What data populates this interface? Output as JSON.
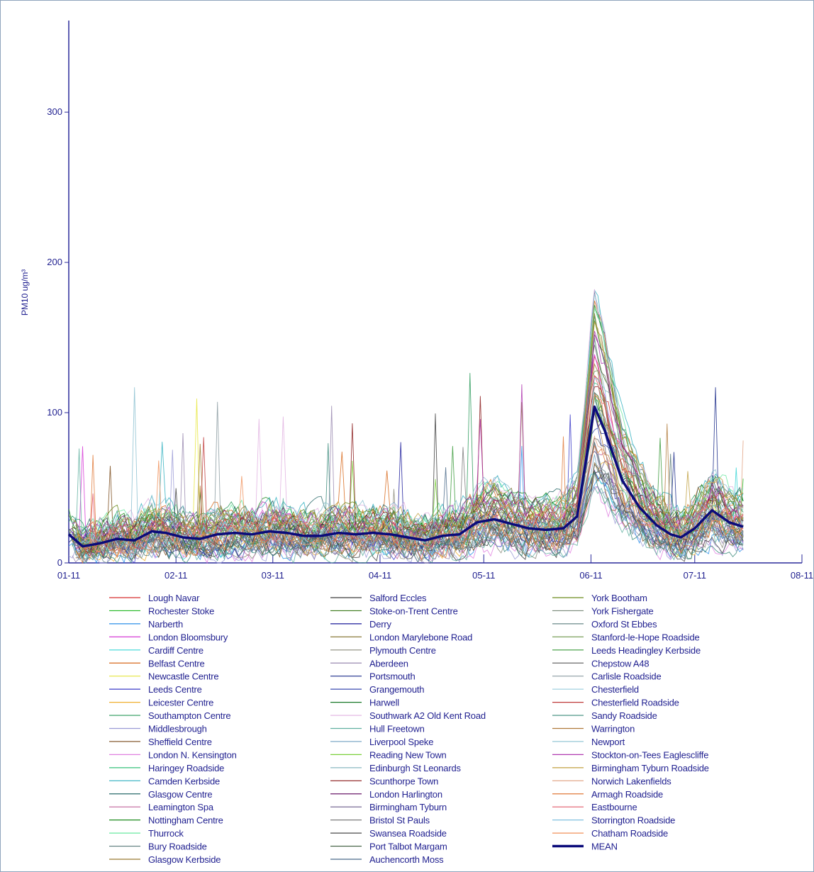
{
  "chart_data": {
    "type": "line",
    "title": "",
    "ylabel": "PM10 ug/m³",
    "xlabel": "",
    "x_ticks": [
      "01-11",
      "02-11",
      "03-11",
      "04-11",
      "05-11",
      "06-11",
      "07-11",
      "08-11"
    ],
    "x_range": [
      "2011-01-01",
      "2011-08-01"
    ],
    "ylim": [
      0,
      360
    ],
    "y_ticks": [
      0,
      100,
      200,
      300
    ],
    "grid": false,
    "legend_placement": "bottom",
    "mean_series": {
      "name": "MEAN",
      "color": "#0b0b7a",
      "x": [
        "2011-01-01",
        "2011-01-05",
        "2011-01-10",
        "2011-01-15",
        "2011-01-20",
        "2011-01-25",
        "2011-01-29",
        "2011-02-03",
        "2011-02-08",
        "2011-02-13",
        "2011-02-18",
        "2011-02-23",
        "2011-02-28",
        "2011-03-05",
        "2011-03-10",
        "2011-03-15",
        "2011-03-20",
        "2011-03-25",
        "2011-03-30",
        "2011-04-04",
        "2011-04-09",
        "2011-04-14",
        "2011-04-19",
        "2011-04-24",
        "2011-04-29",
        "2011-05-04",
        "2011-05-09",
        "2011-05-14",
        "2011-05-19",
        "2011-05-24",
        "2011-05-28",
        "2011-05-31",
        "2011-06-02",
        "2011-06-05",
        "2011-06-10",
        "2011-06-15",
        "2011-06-20",
        "2011-06-24",
        "2011-06-27",
        "2011-07-01",
        "2011-07-06",
        "2011-07-11",
        "2011-07-15"
      ],
      "values": [
        19,
        11,
        13,
        16,
        15,
        21,
        20,
        17,
        16,
        19,
        20,
        19,
        21,
        20,
        18,
        18,
        20,
        19,
        20,
        19,
        17,
        15,
        18,
        19,
        27,
        29,
        26,
        23,
        22,
        23,
        31,
        75,
        104,
        88,
        55,
        37,
        25,
        19,
        17,
        23,
        35,
        27,
        24
      ]
    },
    "station_series": [
      {
        "name": "Lough Navar",
        "color": "#d62c2c"
      },
      {
        "name": "Rochester Stoke",
        "color": "#22b822"
      },
      {
        "name": "Narberth",
        "color": "#2a8fe8"
      },
      {
        "name": "London Bloomsbury",
        "color": "#d63ad6"
      },
      {
        "name": "Cardiff Centre",
        "color": "#39d6d6"
      },
      {
        "name": "Belfast Centre",
        "color": "#d86a1c"
      },
      {
        "name": "Newcastle Centre",
        "color": "#e6e639"
      },
      {
        "name": "Leeds Centre",
        "color": "#3a3ac8"
      },
      {
        "name": "Leicester Centre",
        "color": "#f0b030"
      },
      {
        "name": "Southampton Centre",
        "color": "#2a9a5a"
      },
      {
        "name": "Middlesbrough",
        "color": "#9a9ad6"
      },
      {
        "name": "Sheffield Centre",
        "color": "#7a4a1a"
      },
      {
        "name": "London N. Kensington",
        "color": "#e080e0"
      },
      {
        "name": "Haringey Roadside",
        "color": "#36c27a"
      },
      {
        "name": "Camden Kerbside",
        "color": "#30b0c0"
      },
      {
        "name": "Glasgow Centre",
        "color": "#2a6a6a"
      },
      {
        "name": "Leamington Spa",
        "color": "#c0609a"
      },
      {
        "name": "Nottingham Centre",
        "color": "#1a8a1a"
      },
      {
        "name": "Thurrock",
        "color": "#6ae8a0"
      },
      {
        "name": "Bury Roadside",
        "color": "#5a7a7a"
      },
      {
        "name": "Glasgow Kerbside",
        "color": "#9a7a30"
      },
      {
        "name": "Salford Eccles",
        "color": "#3a3a3a"
      },
      {
        "name": "Stoke-on-Trent Centre",
        "color": "#3a7a1a"
      },
      {
        "name": "Derry",
        "color": "#1a1a9a"
      },
      {
        "name": "London Marylebone Road",
        "color": "#8a7a3a"
      },
      {
        "name": "Plymouth Centre",
        "color": "#8a8a7a"
      },
      {
        "name": "Aberdeen",
        "color": "#9a8ab0"
      },
      {
        "name": "Portsmouth",
        "color": "#1a2a8a"
      },
      {
        "name": "Grangemouth",
        "color": "#3a4ab0"
      },
      {
        "name": "Harwell",
        "color": "#1a7a2a"
      },
      {
        "name": "Southwark A2 Old Kent Road",
        "color": "#e0b0e0"
      },
      {
        "name": "Hull Freetown",
        "color": "#60b0a0"
      },
      {
        "name": "Liverpool Speke",
        "color": "#70a0c0"
      },
      {
        "name": "Reading New Town",
        "color": "#7ad03a"
      },
      {
        "name": "Edinburgh St Leonards",
        "color": "#8ab8c0"
      },
      {
        "name": "Scunthorpe Town",
        "color": "#8a1a1a"
      },
      {
        "name": "London Harlington",
        "color": "#6a1a6a"
      },
      {
        "name": "Birmingham Tyburn",
        "color": "#6a5a8a"
      },
      {
        "name": "Bristol St Pauls",
        "color": "#7a7a7a"
      },
      {
        "name": "Swansea Roadside",
        "color": "#4a4a4a"
      },
      {
        "name": "Port Talbot Margam",
        "color": "#3a5a3a"
      },
      {
        "name": "Auchencorth Moss",
        "color": "#4a6a8a"
      },
      {
        "name": "York Bootham",
        "color": "#6a8a1a"
      },
      {
        "name": "York Fishergate",
        "color": "#7a8a7a"
      },
      {
        "name": "Oxford St Ebbes",
        "color": "#6a8a8a"
      },
      {
        "name": "Stanford-le-Hope Roadside",
        "color": "#7aa05a"
      },
      {
        "name": "Leeds Headingley Kerbside",
        "color": "#3a9a3a"
      },
      {
        "name": "Chepstow A48",
        "color": "#6a6a6a"
      },
      {
        "name": "Carlisle Roadside",
        "color": "#8a9aa0"
      },
      {
        "name": "Chesterfield",
        "color": "#a0d0e0"
      },
      {
        "name": "Chesterfield Roadside",
        "color": "#c03a3a"
      },
      {
        "name": "Sandy Roadside",
        "color": "#3a8a7a"
      },
      {
        "name": "Warrington",
        "color": "#b07a3a"
      },
      {
        "name": "Newport",
        "color": "#8ac0d0"
      },
      {
        "name": "Stockton-on-Tees Eaglescliffe",
        "color": "#b03ab0"
      },
      {
        "name": "Birmingham Tyburn Roadside",
        "color": "#c0a040"
      },
      {
        "name": "Norwich Lakenfields",
        "color": "#e0a080"
      },
      {
        "name": "Armagh Roadside",
        "color": "#e07a3a"
      },
      {
        "name": "Eastbourne",
        "color": "#e05a6a"
      },
      {
        "name": "Storrington Roadside",
        "color": "#80c0e0"
      },
      {
        "name": "Chatham Roadside",
        "color": "#f0905a"
      }
    ],
    "legend_columns": [
      [
        "Lough Navar",
        "Rochester Stoke",
        "Narberth",
        "London Bloomsbury",
        "Cardiff Centre",
        "Belfast Centre",
        "Newcastle Centre",
        "Leeds Centre",
        "Leicester Centre",
        "Southampton Centre",
        "Middlesbrough",
        "Sheffield Centre",
        "London N. Kensington",
        "Haringey Roadside",
        "Camden Kerbside",
        "Glasgow Centre",
        "Leamington Spa",
        "Nottingham Centre",
        "Thurrock",
        "Bury Roadside",
        "Glasgow Kerbside"
      ],
      [
        "Salford Eccles",
        "Stoke-on-Trent Centre",
        "Derry",
        "London Marylebone Road",
        "Plymouth Centre",
        "Aberdeen",
        "Portsmouth",
        "Grangemouth",
        "Harwell",
        "Southwark A2 Old Kent Road",
        "Hull Freetown",
        "Liverpool Speke",
        "Reading New Town",
        "Edinburgh St Leonards",
        "Scunthorpe Town",
        "London Harlington",
        "Birmingham Tyburn",
        "Bristol St Pauls",
        "Swansea Roadside",
        "Port Talbot Margam",
        "Auchencorth Moss"
      ],
      [
        "York Bootham",
        "York Fishergate",
        "Oxford St Ebbes",
        "Stanford-le-Hope Roadside",
        "Leeds Headingley Kerbside",
        "Chepstow A48",
        "Carlisle Roadside",
        "Chesterfield",
        "Chesterfield Roadside",
        "Sandy Roadside",
        "Warrington",
        "Newport",
        "Stockton-on-Tees Eaglescliffe",
        "Birmingham Tyburn Roadside",
        "Norwich Lakenfields",
        "Armagh Roadside",
        "Eastbourne",
        "Storrington Roadside",
        "Chatham Roadside",
        "MEAN"
      ]
    ]
  }
}
